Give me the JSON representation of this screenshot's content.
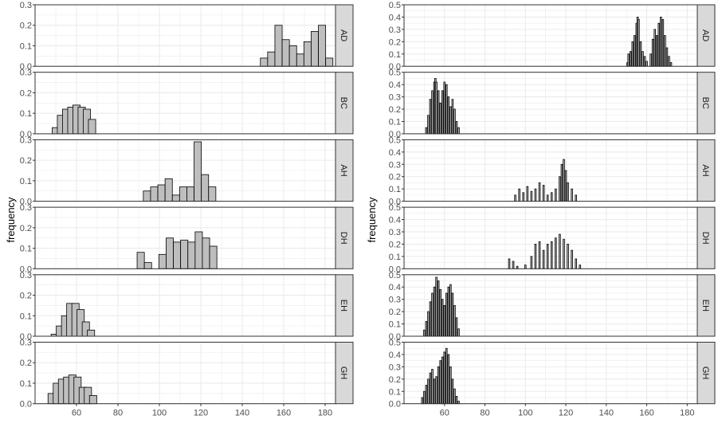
{
  "figure": {
    "ylabel": "frequency",
    "colors": {
      "panel_bg": "#ffffff",
      "grid": "#ebebeb",
      "strip_bg": "#d9d9d9",
      "bar_fill": "#bebebe",
      "bar_stroke": "#000000"
    }
  },
  "chart_data": [
    {
      "type": "bar",
      "layout": "faceted histogram (facet rows, labels on right strips)",
      "ylabel": "frequency",
      "xlim": [
        40,
        185
      ],
      "xticks": [
        60,
        80,
        100,
        120,
        140,
        160,
        180
      ],
      "ylim": [
        0,
        0.3
      ],
      "yticks": [
        0.0,
        0.1,
        0.2,
        0.3
      ],
      "grid": true,
      "bin_width": 3.5,
      "facets": [
        {
          "label": "AD",
          "bins": [
            [
              150.5,
              0.04
            ],
            [
              154,
              0.07
            ],
            [
              157.5,
              0.2
            ],
            [
              161,
              0.13
            ],
            [
              164.5,
              0.1
            ],
            [
              168,
              0.06
            ],
            [
              171.5,
              0.12
            ],
            [
              175,
              0.17
            ],
            [
              178.5,
              0.2
            ],
            [
              182,
              0.04
            ]
          ]
        },
        {
          "label": "BC",
          "bins": [
            [
              50,
              0.03
            ],
            [
              52.5,
              0.09
            ],
            [
              55,
              0.12
            ],
            [
              57.5,
              0.13
            ],
            [
              60,
              0.14
            ],
            [
              62.5,
              0.13
            ],
            [
              65,
              0.12
            ],
            [
              67.5,
              0.07
            ]
          ]
        },
        {
          "label": "AH",
          "bins": [
            [
              94,
              0.05
            ],
            [
              97.5,
              0.07
            ],
            [
              101,
              0.08
            ],
            [
              104.5,
              0.11
            ],
            [
              108,
              0.03
            ],
            [
              111.5,
              0.07
            ],
            [
              115,
              0.07
            ],
            [
              118.5,
              0.29
            ],
            [
              122,
              0.13
            ],
            [
              125.5,
              0.07
            ]
          ]
        },
        {
          "label": "DH",
          "bins": [
            [
              91,
              0.08
            ],
            [
              94.5,
              0.03
            ],
            [
              98,
              0.0
            ],
            [
              101.5,
              0.07
            ],
            [
              105,
              0.15
            ],
            [
              108.5,
              0.13
            ],
            [
              112,
              0.14
            ],
            [
              115.5,
              0.13
            ],
            [
              119,
              0.18
            ],
            [
              122.5,
              0.15
            ],
            [
              126,
              0.11
            ]
          ]
        },
        {
          "label": "EH",
          "bins": [
            [
              49.5,
              0.01
            ],
            [
              52,
              0.05
            ],
            [
              54.5,
              0.1
            ],
            [
              57,
              0.16
            ],
            [
              59.5,
              0.16
            ],
            [
              62,
              0.13
            ],
            [
              64.5,
              0.07
            ],
            [
              67,
              0.03
            ]
          ]
        },
        {
          "label": "GH",
          "bins": [
            [
              48,
              0.05
            ],
            [
              50.5,
              0.1
            ],
            [
              53,
              0.12
            ],
            [
              55.5,
              0.13
            ],
            [
              58,
              0.14
            ],
            [
              60.5,
              0.13
            ],
            [
              63,
              0.08
            ],
            [
              65.5,
              0.08
            ],
            [
              68,
              0.04
            ]
          ]
        }
      ]
    },
    {
      "type": "bar",
      "layout": "faceted histogram (facet rows, labels on right strips)",
      "ylabel": "frequency",
      "xlim": [
        40,
        185
      ],
      "xticks": [
        60,
        80,
        100,
        120,
        140,
        160,
        180
      ],
      "ylim": [
        0,
        0.5
      ],
      "yticks": [
        0.0,
        0.1,
        0.2,
        0.3,
        0.4,
        0.5
      ],
      "grid": true,
      "bin_width": 0.7,
      "facets": [
        {
          "label": "AD",
          "bins": [
            [
              150.5,
              0.03
            ],
            [
              151,
              0.1
            ],
            [
              152,
              0.12
            ],
            [
              153,
              0.2
            ],
            [
              154,
              0.25
            ],
            [
              155,
              0.35
            ],
            [
              155.5,
              0.4
            ],
            [
              156,
              0.38
            ],
            [
              157,
              0.2
            ],
            [
              158,
              0.12
            ],
            [
              159,
              0.08
            ],
            [
              160,
              0.04
            ],
            [
              162,
              0.1
            ],
            [
              163,
              0.22
            ],
            [
              164,
              0.3
            ],
            [
              165,
              0.25
            ],
            [
              166,
              0.35
            ],
            [
              167,
              0.4
            ],
            [
              168,
              0.38
            ],
            [
              169,
              0.25
            ],
            [
              170,
              0.15
            ],
            [
              171,
              0.08
            ],
            [
              172,
              0.03
            ]
          ]
        },
        {
          "label": "BC",
          "bins": [
            [
              51,
              0.05
            ],
            [
              52,
              0.15
            ],
            [
              53,
              0.28
            ],
            [
              54,
              0.35
            ],
            [
              55,
              0.42
            ],
            [
              55.5,
              0.45
            ],
            [
              56,
              0.42
            ],
            [
              57,
              0.35
            ],
            [
              58,
              0.25
            ],
            [
              59,
              0.35
            ],
            [
              60,
              0.42
            ],
            [
              61,
              0.4
            ],
            [
              62,
              0.3
            ],
            [
              63,
              0.22
            ],
            [
              64,
              0.28
            ],
            [
              65,
              0.2
            ],
            [
              66,
              0.1
            ],
            [
              67,
              0.05
            ]
          ]
        },
        {
          "label": "AH",
          "bins": [
            [
              95,
              0.05
            ],
            [
              97,
              0.1
            ],
            [
              99,
              0.07
            ],
            [
              101,
              0.12
            ],
            [
              103,
              0.08
            ],
            [
              105,
              0.1
            ],
            [
              107,
              0.15
            ],
            [
              109,
              0.13
            ],
            [
              111,
              0.05
            ],
            [
              113,
              0.07
            ],
            [
              115,
              0.1
            ],
            [
              117,
              0.2
            ],
            [
              118,
              0.3
            ],
            [
              119,
              0.34
            ],
            [
              120,
              0.25
            ],
            [
              121,
              0.15
            ],
            [
              123,
              0.1
            ],
            [
              125,
              0.05
            ]
          ]
        },
        {
          "label": "DH",
          "bins": [
            [
              92,
              0.08
            ],
            [
              94,
              0.06
            ],
            [
              96,
              0.02
            ],
            [
              100,
              0.03
            ],
            [
              103,
              0.1
            ],
            [
              105,
              0.2
            ],
            [
              107,
              0.22
            ],
            [
              109,
              0.15
            ],
            [
              111,
              0.2
            ],
            [
              113,
              0.22
            ],
            [
              115,
              0.25
            ],
            [
              117,
              0.28
            ],
            [
              119,
              0.24
            ],
            [
              121,
              0.2
            ],
            [
              123,
              0.15
            ],
            [
              125,
              0.08
            ],
            [
              127,
              0.03
            ]
          ]
        },
        {
          "label": "EH",
          "bins": [
            [
              50,
              0.05
            ],
            [
              51,
              0.12
            ],
            [
              52,
              0.2
            ],
            [
              53,
              0.28
            ],
            [
              54,
              0.35
            ],
            [
              55,
              0.4
            ],
            [
              56,
              0.48
            ],
            [
              57,
              0.45
            ],
            [
              58,
              0.38
            ],
            [
              59,
              0.3
            ],
            [
              60,
              0.25
            ],
            [
              61,
              0.35
            ],
            [
              62,
              0.4
            ],
            [
              63,
              0.42
            ],
            [
              64,
              0.35
            ],
            [
              65,
              0.25
            ],
            [
              66,
              0.15
            ],
            [
              67,
              0.06
            ]
          ]
        },
        {
          "label": "GH",
          "bins": [
            [
              49,
              0.05
            ],
            [
              50,
              0.1
            ],
            [
              51,
              0.15
            ],
            [
              52,
              0.2
            ],
            [
              53,
              0.25
            ],
            [
              54,
              0.28
            ],
            [
              55,
              0.2
            ],
            [
              56,
              0.22
            ],
            [
              57,
              0.3
            ],
            [
              58,
              0.35
            ],
            [
              59,
              0.38
            ],
            [
              60,
              0.42
            ],
            [
              61,
              0.45
            ],
            [
              62,
              0.4
            ],
            [
              63,
              0.3
            ],
            [
              64,
              0.2
            ],
            [
              65,
              0.12
            ],
            [
              66,
              0.06
            ],
            [
              67,
              0.02
            ]
          ]
        }
      ]
    }
  ]
}
